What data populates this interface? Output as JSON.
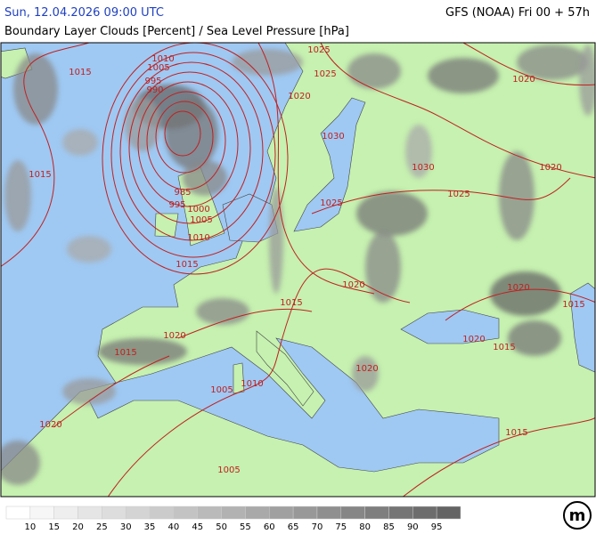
{
  "header": {
    "datetime": "Sun, 12.04.2026 09:00 UTC",
    "model": "GFS (NOAA) Fri 00 + 57h",
    "title": "Boundary Layer Clouds [Percent] / Sea Level Pressure [hPa]"
  },
  "isobar_labels": [
    "1015",
    "1010",
    "1005",
    "995",
    "990",
    "1025",
    "1025",
    "1020",
    "1030",
    "1030",
    "1025",
    "1025",
    "1020",
    "1020",
    "1015",
    "985",
    "995",
    "1000",
    "1005",
    "1010",
    "1015",
    "1015",
    "1020",
    "1020",
    "1015",
    "1020",
    "1015",
    "1020",
    "1015",
    "1020",
    "1010",
    "1005",
    "1020",
    "1015",
    "1005"
  ],
  "legend": {
    "labels": [
      "10",
      "15",
      "20",
      "25",
      "30",
      "35",
      "40",
      "45",
      "50",
      "55",
      "60",
      "65",
      "70",
      "75",
      "80",
      "85",
      "90",
      "95"
    ]
  },
  "logo": "m"
}
